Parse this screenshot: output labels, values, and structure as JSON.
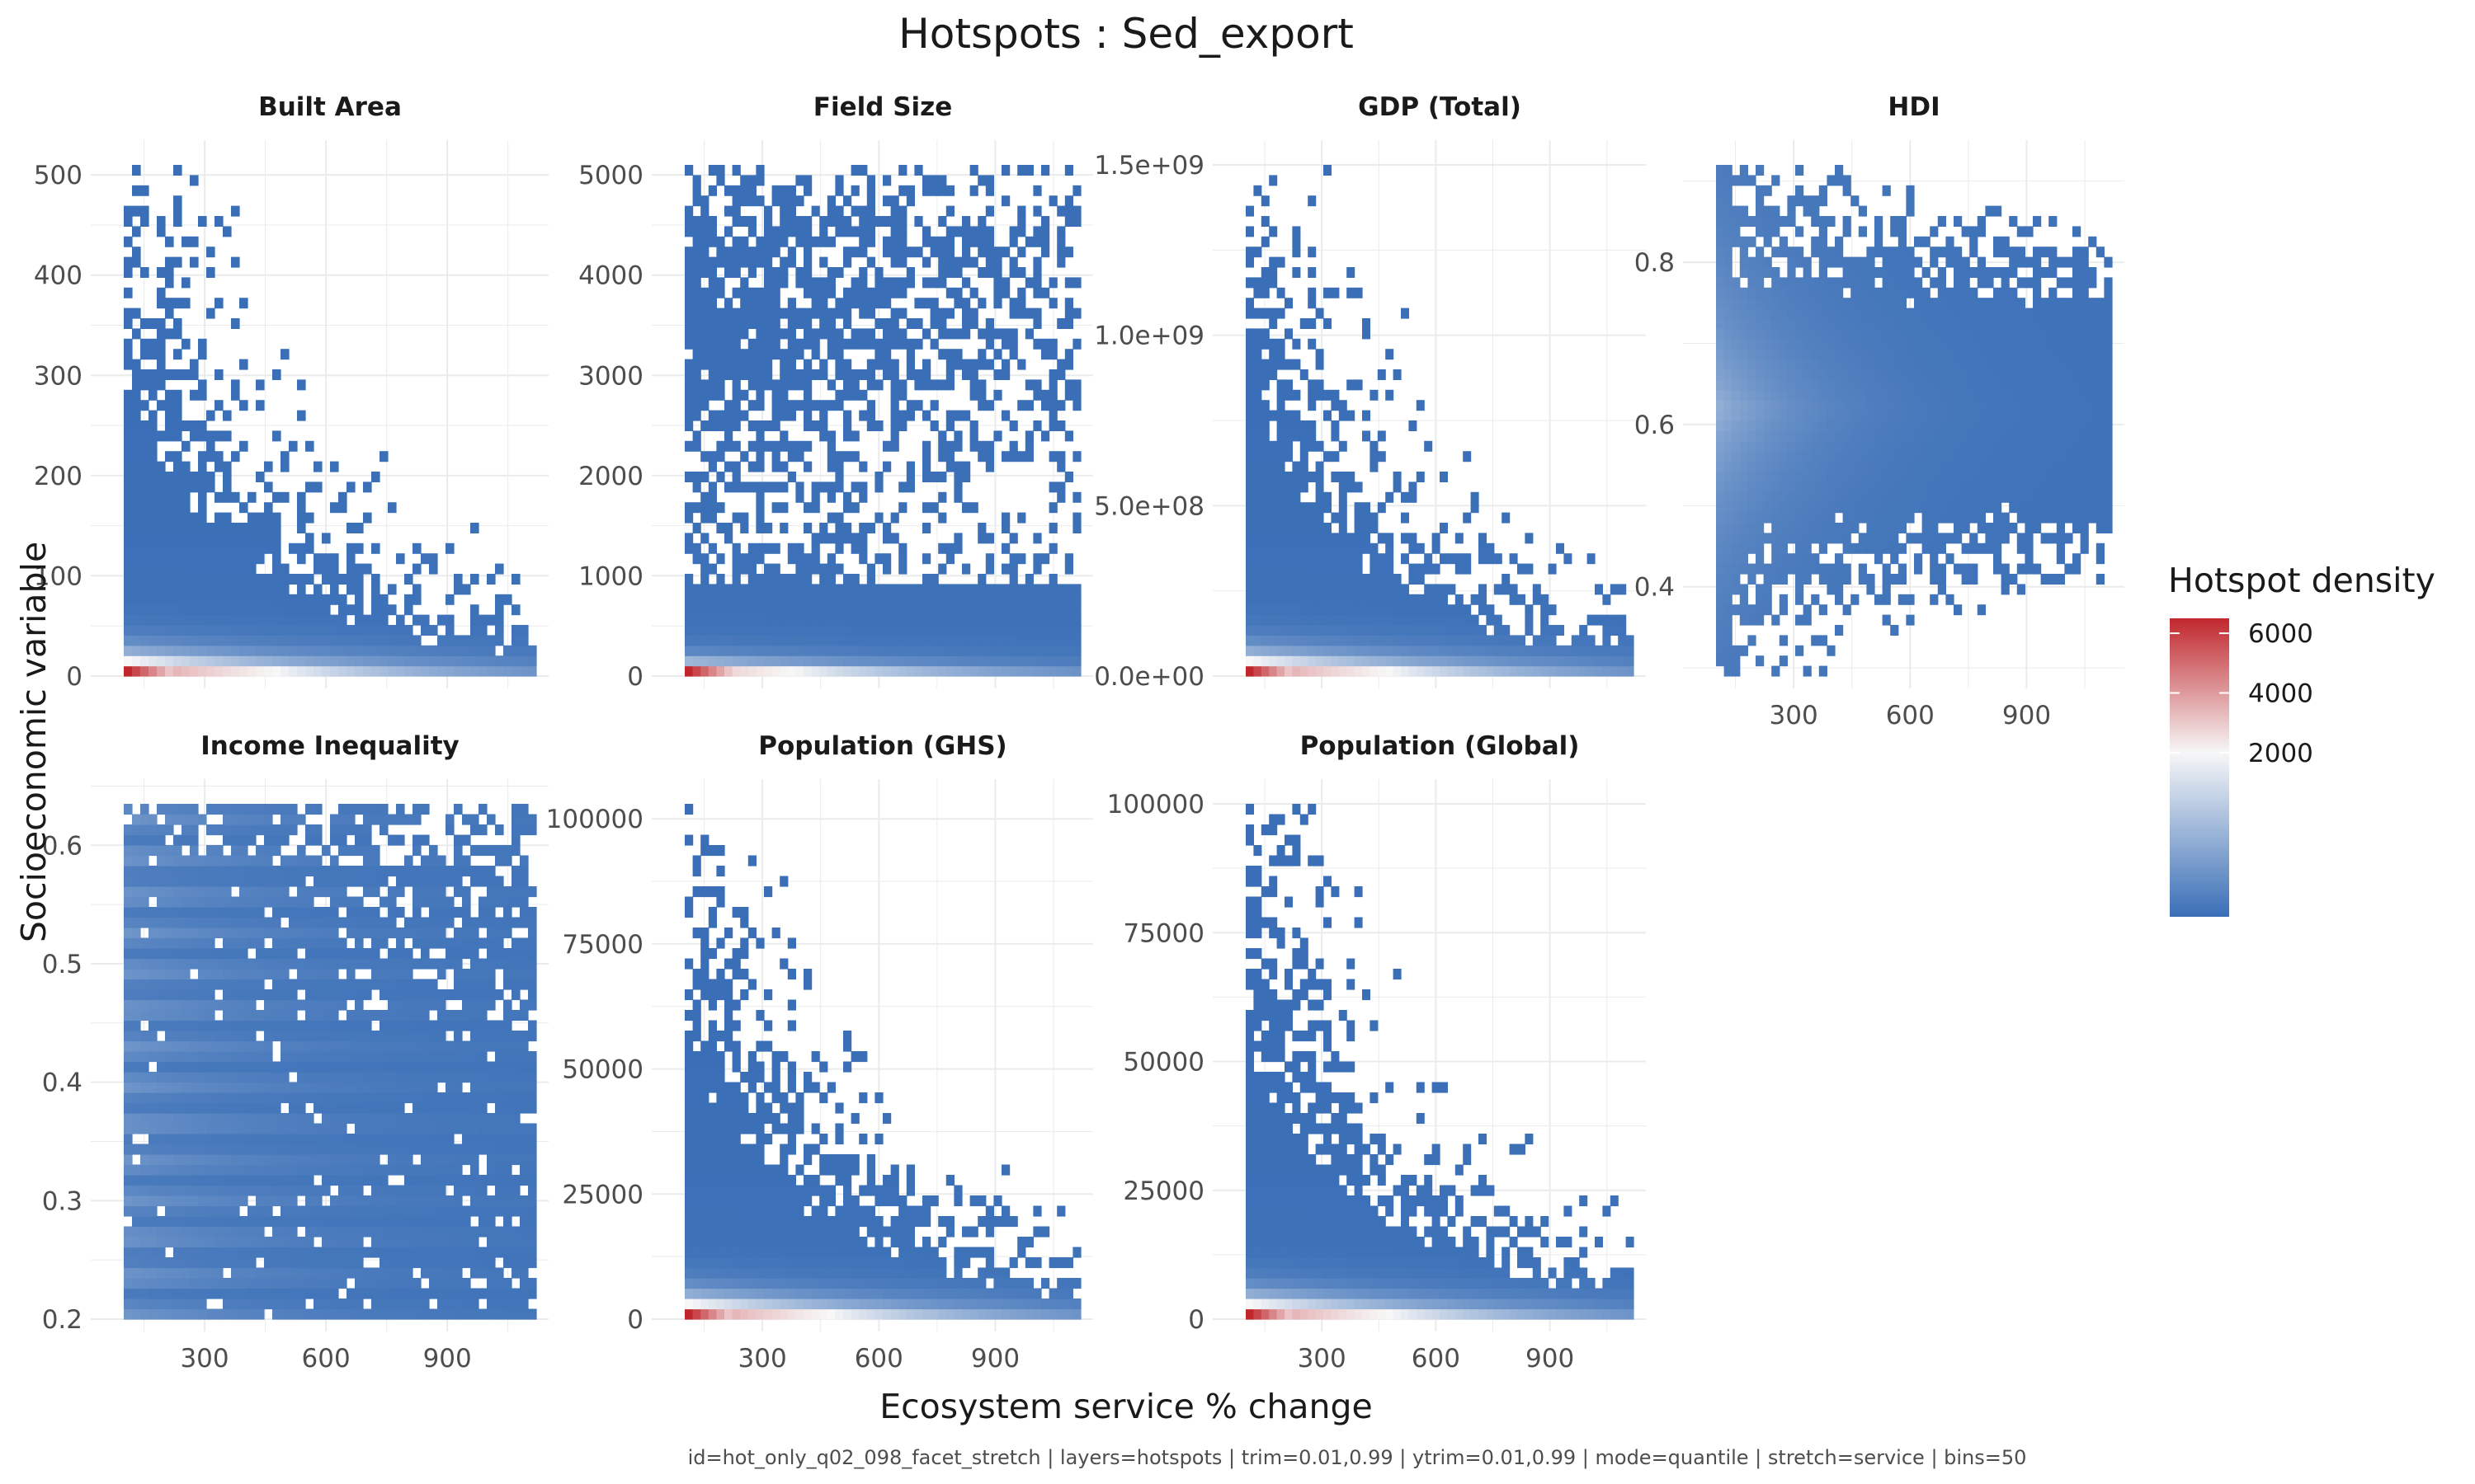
{
  "title": "Hotspots : Sed_export",
  "xlabel": "Ecosystem service % change",
  "ylabel": "Socioeconomic variable",
  "caption": "id=hot_only_q02_098_facet_stretch | layers=hotspots | trim=0.01,0.99 | ytrim=0.01,0.99 | mode=quantile | stretch=service | bins=50",
  "legend": {
    "title": "Hotspot density",
    "ticks": [
      {
        "value": 6000,
        "label": "6000"
      },
      {
        "value": 4000,
        "label": "4000"
      },
      {
        "value": 2000,
        "label": "2000"
      }
    ],
    "colors": {
      "low": "#3a6fb7",
      "mid": "#f7f7f7",
      "high": "#c0272d"
    }
  },
  "chart_data": {
    "type": "heatmap",
    "bins": 50,
    "x_range": [
      100,
      1120
    ],
    "x_ticks": [
      300,
      600,
      900
    ],
    "x_tick_labels": [
      "300",
      "600",
      "900"
    ],
    "color_scale": "density (blue low → white → red high)",
    "panels": [
      {
        "id": "built-area",
        "name": "Built Area",
        "ylim": [
          0,
          510
        ],
        "y_ticks": [
          0,
          100,
          200,
          300,
          400,
          500
        ],
        "y_tick_labels": [
          "0",
          "100",
          "200",
          "300",
          "400",
          "500"
        ],
        "pattern": "decay",
        "fill_top": 510,
        "hot_y": 5,
        "peak_density": 6500
      },
      {
        "id": "field-size",
        "name": "Field Size",
        "ylim": [
          0,
          5100
        ],
        "y_ticks": [
          0,
          1000,
          2000,
          3000,
          4000,
          5000
        ],
        "y_tick_labels": [
          "0",
          "1000",
          "2000",
          "3000",
          "4000",
          "5000"
        ],
        "pattern": "spread",
        "fill_top": 5100,
        "hot_y": 50,
        "peak_density": 6000
      },
      {
        "id": "gdp-total",
        "name": "GDP (Total)",
        "ylim": [
          0,
          1500000000
        ],
        "y_ticks": [
          0,
          500000000,
          1000000000,
          1500000000
        ],
        "y_tick_labels": [
          "0.0e+00",
          "5.0e+08",
          "1.0e+09",
          "1.5e+09"
        ],
        "pattern": "decay",
        "fill_top": 1500000000,
        "hot_y": 15000000,
        "peak_density": 6500
      },
      {
        "id": "hdi",
        "name": "HDI",
        "ylim": [
          0.29,
          0.92
        ],
        "y_ticks": [
          0.4,
          0.6,
          0.8
        ],
        "y_tick_labels": [
          "0.4",
          "0.6",
          "0.8"
        ],
        "pattern": "band",
        "fill_top": 0.92,
        "hot_y": null,
        "peak_density": 1400
      },
      {
        "id": "income-inequality",
        "name": "Income Inequality",
        "ylim": [
          0.2,
          0.635
        ],
        "y_ticks": [
          0.2,
          0.3,
          0.4,
          0.5,
          0.6
        ],
        "y_tick_labels": [
          "0.2",
          "0.3",
          "0.4",
          "0.5",
          "0.6"
        ],
        "pattern": "stripes",
        "fill_top": 0.635,
        "hot_y": null,
        "peak_density": 1400
      },
      {
        "id": "population-ghs",
        "name": "Population (GHS)",
        "ylim": [
          0,
          103000
        ],
        "y_ticks": [
          0,
          25000,
          50000,
          75000,
          100000
        ],
        "y_tick_labels": [
          "0",
          "25000",
          "50000",
          "75000",
          "100000"
        ],
        "pattern": "decay",
        "fill_top": 103000,
        "hot_y": 1000,
        "peak_density": 6500
      },
      {
        "id": "population-global",
        "name": "Population (Global)",
        "ylim": [
          0,
          100000
        ],
        "y_ticks": [
          0,
          25000,
          50000,
          75000,
          100000
        ],
        "y_tick_labels": [
          "0",
          "25000",
          "50000",
          "75000",
          "100000"
        ],
        "pattern": "decay",
        "fill_top": 100000,
        "hot_y": 1000,
        "peak_density": 6500
      }
    ]
  }
}
